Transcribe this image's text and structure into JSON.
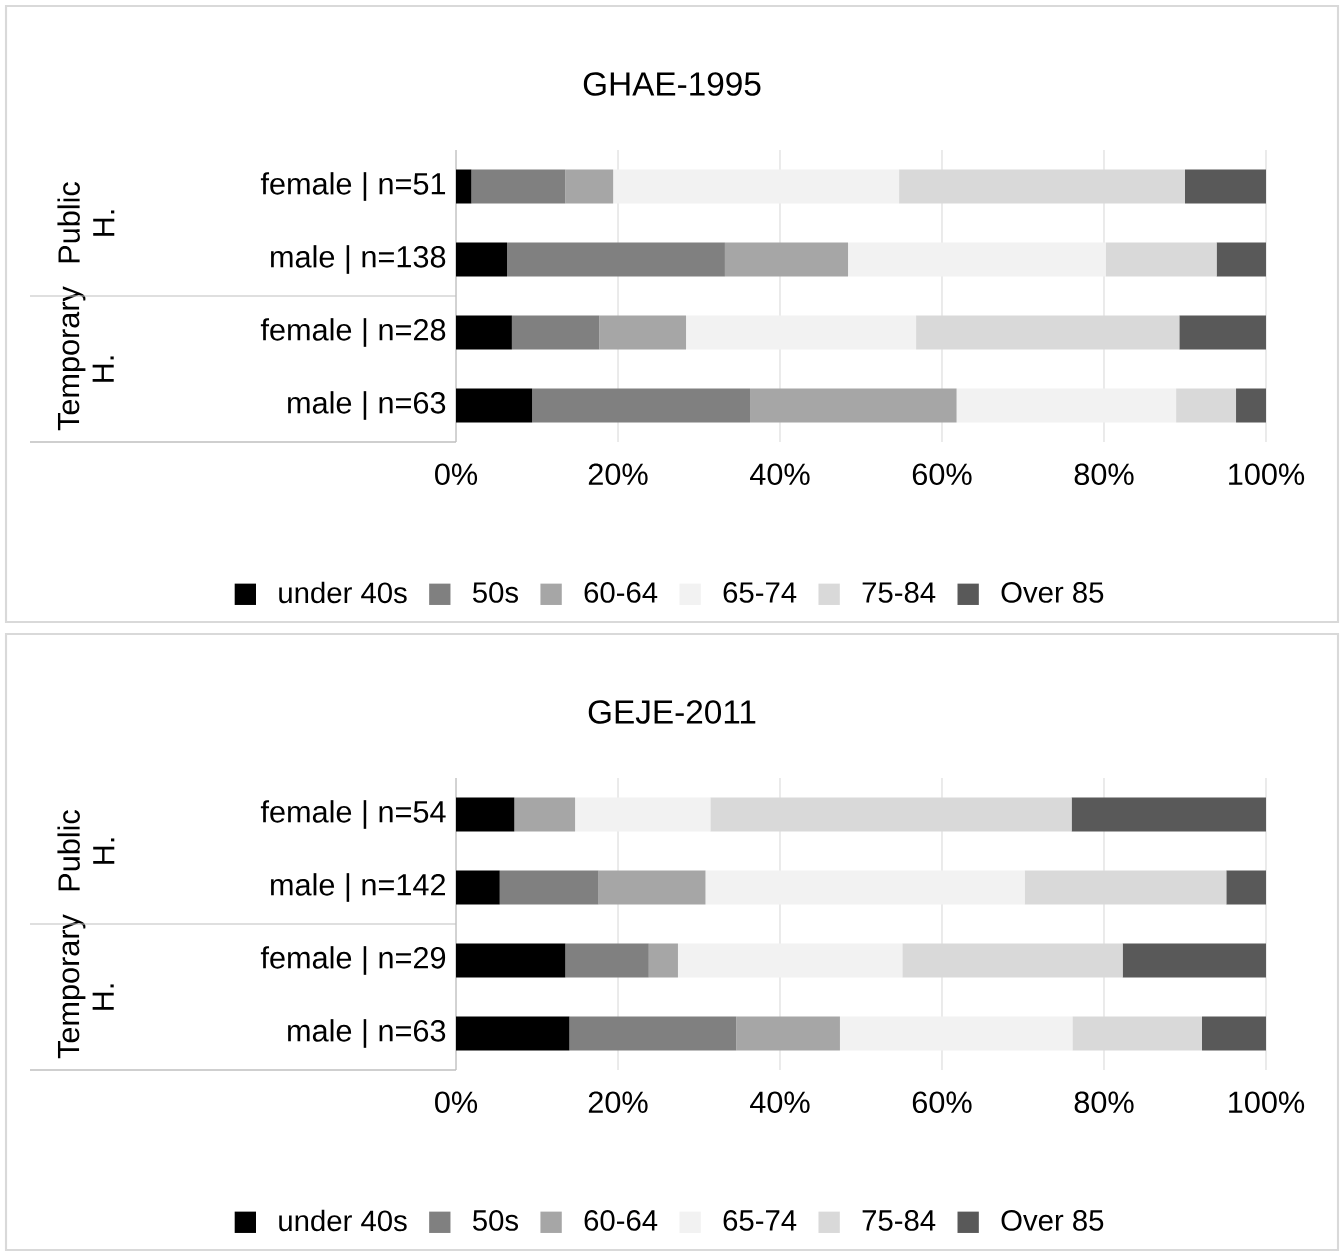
{
  "chart_data": [
    {
      "type": "bar",
      "orientation": "horizontal",
      "stacked": true,
      "title": "GHAE-1995",
      "categories": [
        "female | n=51",
        "male | n=138",
        "female | n=28",
        "male | n=63"
      ],
      "annotations": [
        "Public H.",
        "Temporary H."
      ],
      "series": [
        {
          "name": "under 40s",
          "color": "#000000",
          "values": [
            1.9,
            6.3,
            6.9,
            9.4
          ]
        },
        {
          "name": "50s",
          "color": "#808080",
          "values": [
            11.6,
            26.9,
            10.8,
            26.9
          ]
        },
        {
          "name": "60-64",
          "color": "#a6a6a6",
          "values": [
            5.9,
            15.2,
            10.7,
            25.5
          ]
        },
        {
          "name": "65-74",
          "color": "#f2f2f2",
          "values": [
            35.3,
            31.8,
            28.4,
            27.1
          ]
        },
        {
          "name": "75-84",
          "color": "#d9d9d9",
          "values": [
            35.3,
            13.7,
            32.5,
            7.4
          ]
        },
        {
          "name": "Over 85",
          "color": "#595959",
          "values": [
            10.0,
            6.1,
            10.7,
            3.7
          ]
        }
      ],
      "xlim": [
        0,
        100
      ],
      "xticks": [
        {
          "value": 0,
          "label": "0%"
        },
        {
          "value": 20,
          "label": "20%"
        },
        {
          "value": 40,
          "label": "40%"
        },
        {
          "value": 60,
          "label": "60%"
        },
        {
          "value": 80,
          "label": "80%"
        },
        {
          "value": 100,
          "label": "100%"
        }
      ],
      "grid": "x",
      "legend": "bottom"
    },
    {
      "type": "bar",
      "orientation": "horizontal",
      "stacked": true,
      "title": "GEJE-2011",
      "categories": [
        "female | n=54",
        "male | n=142",
        "female | n=29",
        "male | n=63"
      ],
      "annotations": [
        "Public H.",
        "Temporary H."
      ],
      "series": [
        {
          "name": "under 40s",
          "color": "#000000",
          "values": [
            7.2,
            5.4,
            13.5,
            14.0
          ]
        },
        {
          "name": "50s",
          "color": "#808080",
          "values": [
            0,
            12.2,
            10.3,
            20.6
          ]
        },
        {
          "name": "60-64",
          "color": "#a6a6a6",
          "values": [
            7.5,
            13.2,
            3.6,
            12.8
          ]
        },
        {
          "name": "65-74",
          "color": "#f2f2f2",
          "values": [
            16.7,
            39.4,
            27.7,
            28.7
          ]
        },
        {
          "name": "75-84",
          "color": "#d9d9d9",
          "values": [
            44.6,
            24.9,
            27.2,
            16.0
          ]
        },
        {
          "name": "Over 85",
          "color": "#595959",
          "values": [
            24.0,
            4.9,
            17.7,
            7.9
          ]
        }
      ],
      "xlim": [
        0,
        100
      ],
      "xticks": [
        {
          "value": 0,
          "label": "0%"
        },
        {
          "value": 20,
          "label": "20%"
        },
        {
          "value": 40,
          "label": "40%"
        },
        {
          "value": 60,
          "label": "60%"
        },
        {
          "value": 80,
          "label": "80%"
        },
        {
          "value": 100,
          "label": "100%"
        }
      ],
      "grid": "x",
      "legend": "bottom"
    }
  ]
}
